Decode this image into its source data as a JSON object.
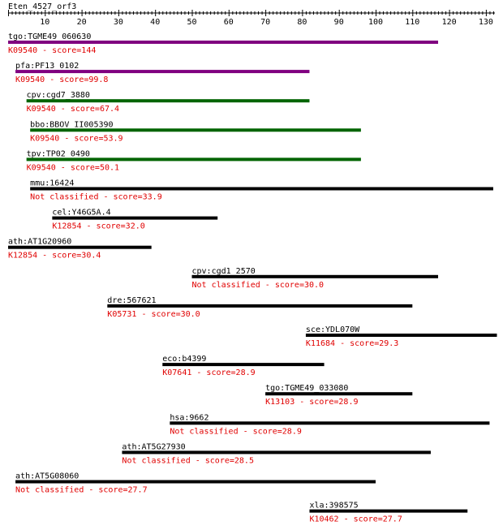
{
  "query_title": "Eten_4527_orf3",
  "axis": {
    "min": 0,
    "max": 133,
    "ticks": [
      10,
      20,
      30,
      40,
      50,
      60,
      70,
      80,
      90,
      100,
      110,
      120,
      130
    ]
  },
  "colors": {
    "text": "#000000",
    "annotation": "#e00000",
    "bar_purple": "#800080",
    "bar_green": "#006400",
    "bar_black": "#000000"
  },
  "hits": [
    {
      "gene": "tgo:TGME49_060630",
      "annotation": "K09540 - score=144",
      "start": 1,
      "end": 117,
      "color": "#800080"
    },
    {
      "gene": "pfa:PF13_0102",
      "annotation": "K09540 - score=99.8",
      "start": 3,
      "end": 82,
      "color": "#800080"
    },
    {
      "gene": "cpv:cgd7_3880",
      "annotation": "K09540 - score=67.4",
      "start": 6,
      "end": 82,
      "color": "#006400"
    },
    {
      "gene": "bbo:BBOV_II005390",
      "annotation": "K09540 - score=53.9",
      "start": 7,
      "end": 96,
      "color": "#006400"
    },
    {
      "gene": "tpv:TP02_0490",
      "annotation": "K09540 - score=50.1",
      "start": 6,
      "end": 96,
      "color": "#006400"
    },
    {
      "gene": "mmu:16424",
      "annotation": "Not classified - score=33.9",
      "start": 7,
      "end": 132,
      "color": "#000000"
    },
    {
      "gene": "cel:Y46G5A.4",
      "annotation": "K12854 - score=32.0",
      "start": 13,
      "end": 57,
      "color": "#000000"
    },
    {
      "gene": "ath:AT1G20960",
      "annotation": "K12854 - score=30.4",
      "start": 1,
      "end": 39,
      "color": "#000000"
    },
    {
      "gene": "cpv:cgd1_2570",
      "annotation": "Not classified - score=30.0",
      "start": 51,
      "end": 117,
      "color": "#000000"
    },
    {
      "gene": "dre:567621",
      "annotation": "K05731 - score=30.0",
      "start": 28,
      "end": 110,
      "color": "#000000"
    },
    {
      "gene": "sce:YDL070W",
      "annotation": "K11684 - score=29.3",
      "start": 82,
      "end": 133,
      "color": "#000000"
    },
    {
      "gene": "eco:b4399",
      "annotation": "K07641 - score=28.9",
      "start": 43,
      "end": 86,
      "color": "#000000"
    },
    {
      "gene": "tgo:TGME49_033080",
      "annotation": "K13103 - score=28.9",
      "start": 71,
      "end": 110,
      "color": "#000000"
    },
    {
      "gene": "hsa:9662",
      "annotation": "Not classified - score=28.9",
      "start": 45,
      "end": 131,
      "color": "#000000"
    },
    {
      "gene": "ath:AT5G27930",
      "annotation": "Not classified - score=28.5",
      "start": 32,
      "end": 115,
      "color": "#000000"
    },
    {
      "gene": "ath:AT5G08060",
      "annotation": "Not classified - score=27.7",
      "start": 3,
      "end": 100,
      "color": "#000000"
    },
    {
      "gene": "xla:398575",
      "annotation": "K10462 - score=27.7",
      "start": 83,
      "end": 125,
      "color": "#000000"
    }
  ]
}
